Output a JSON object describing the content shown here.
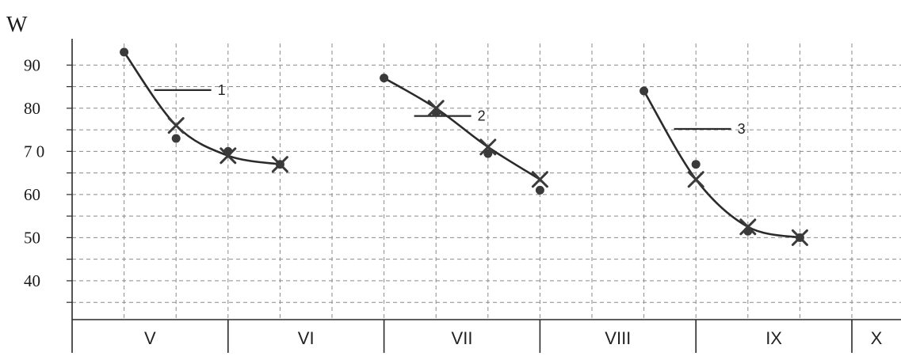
{
  "chart_data": {
    "type": "scatter",
    "ylabel": "W",
    "y_ticks": [
      "90",
      "80",
      "7 0",
      "60",
      "50",
      "40"
    ],
    "y_tick_values": [
      90,
      80,
      70,
      60,
      50,
      40
    ],
    "ylim": [
      31,
      95
    ],
    "months": [
      "V",
      "VI",
      "VII",
      "VIII",
      "IX",
      "X"
    ],
    "xlim": [
      0,
      16
    ],
    "grid": true,
    "series": [
      {
        "label": "1",
        "curve": [
          [
            1,
            93
          ],
          [
            2,
            76
          ],
          [
            3,
            69
          ],
          [
            4,
            67
          ]
        ],
        "dots": [
          [
            1,
            93
          ],
          [
            2,
            73
          ],
          [
            3,
            70
          ],
          [
            4,
            67
          ]
        ],
        "crosses": [
          [
            2,
            76
          ],
          [
            3,
            69
          ],
          [
            4,
            67
          ]
        ]
      },
      {
        "label": "2",
        "curve": [
          [
            6,
            87
          ],
          [
            7,
            80
          ],
          [
            8,
            71
          ],
          [
            9,
            63.5
          ]
        ],
        "dots": [
          [
            6,
            87
          ],
          [
            7,
            79
          ],
          [
            8,
            69.5
          ],
          [
            9,
            61
          ]
        ],
        "crosses": [
          [
            7,
            80
          ],
          [
            8,
            71
          ],
          [
            9,
            63.5
          ]
        ]
      },
      {
        "label": "3",
        "curve": [
          [
            11,
            84
          ],
          [
            12,
            63.5
          ],
          [
            13,
            52.5
          ],
          [
            14,
            50
          ]
        ],
        "dots": [
          [
            11,
            84
          ],
          [
            12,
            67
          ],
          [
            13,
            51.5
          ],
          [
            14,
            50
          ]
        ],
        "crosses": [
          [
            12,
            63.5
          ],
          [
            13,
            52.5
          ],
          [
            14,
            50
          ]
        ]
      }
    ]
  }
}
